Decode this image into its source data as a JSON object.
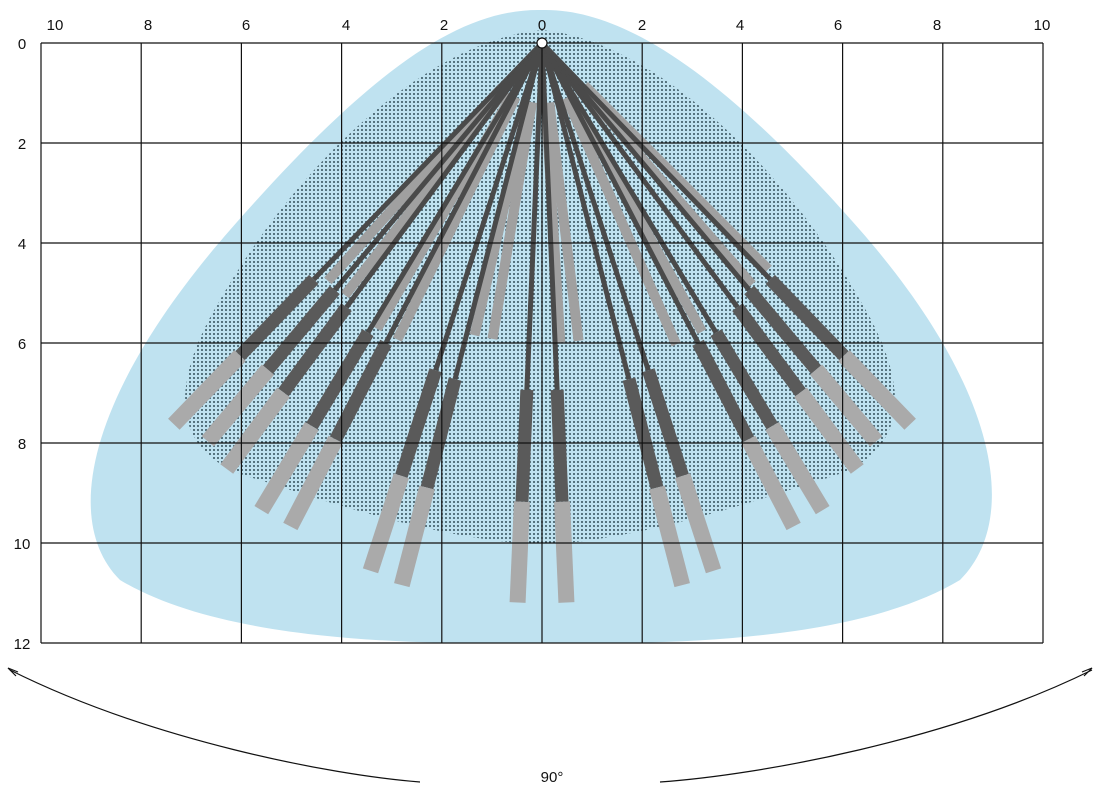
{
  "diagram": {
    "x_ticks_top": [
      "10",
      "8",
      "6",
      "4",
      "2",
      "0",
      "2",
      "4",
      "6",
      "8",
      "10"
    ],
    "y_ticks_left": [
      "0",
      "2",
      "4",
      "6",
      "8",
      "10",
      "12"
    ],
    "angle_label": "90°",
    "colors": {
      "coverage": "#bfe2f0",
      "near_zone": "#6e8891",
      "long_beam": "#4a4a4a",
      "long_beam_tip": "#aaaaaa",
      "short_beam": "#a0a0a0",
      "grid": "#111111"
    },
    "beams": {
      "long_beam_angles_deg": [
        -44,
        -40,
        -36.5,
        -31,
        -27.5,
        -18,
        -14.5,
        -2.5,
        2.5,
        14.5,
        18,
        27.5,
        31,
        36.5,
        40,
        44
      ],
      "short_beam_angles_deg": [
        -42,
        -38,
        -30,
        -26,
        -13,
        -9.5,
        3.5,
        7,
        24,
        29,
        41,
        45
      ]
    }
  }
}
